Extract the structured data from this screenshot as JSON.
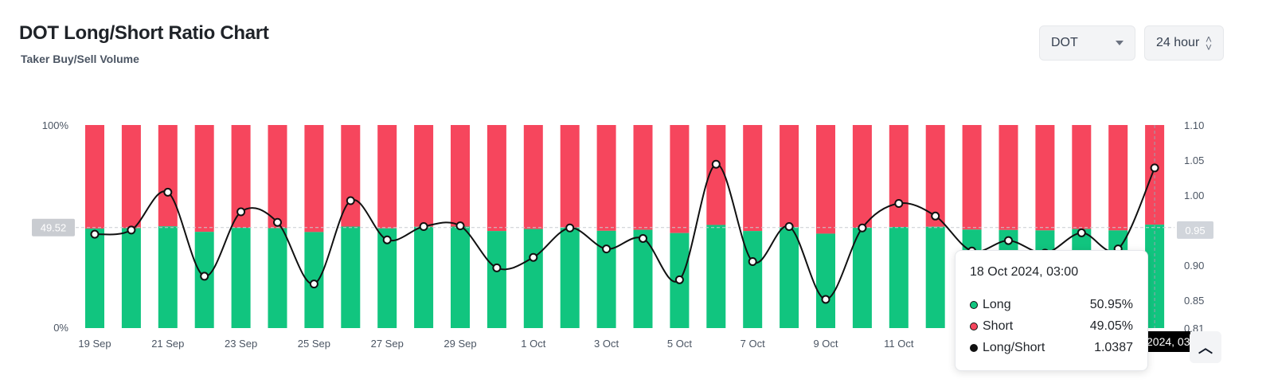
{
  "header": {
    "title": "DOT Long/Short Ratio Chart",
    "subtitle": "Taker Buy/Sell Volume",
    "coin_select": "DOT",
    "interval_select": "24 hour"
  },
  "colors": {
    "long": "#11c57f",
    "short": "#f6465d",
    "line": "#111111"
  },
  "chart_data": {
    "type": "bar",
    "title": "DOT Long/Short Ratio Chart",
    "subtitle": "Taker Buy/Sell Volume",
    "x_tick_labels": [
      "19 Sep",
      "21 Sep",
      "23 Sep",
      "25 Sep",
      "27 Sep",
      "29 Sep",
      "1 Oct",
      "3 Oct",
      "5 Oct",
      "7 Oct",
      "9 Oct",
      "11 Oct"
    ],
    "left_axis": {
      "ticks": [
        "100%",
        "0%"
      ],
      "range": [
        0,
        100
      ]
    },
    "right_axis": {
      "ticks": [
        "1.10",
        "1.05",
        "1.00",
        "0.95",
        "0.90",
        "0.85",
        "0.81"
      ],
      "range": [
        0.81,
        1.1
      ]
    },
    "reference_label": "49.52",
    "reference_value": 49.52,
    "series": [
      {
        "name": "Long",
        "type": "stacked-bar",
        "values": [
          49.0,
          49.2,
          50.1,
          47.4,
          49.4,
          49.2,
          47.3,
          50.0,
          49.1,
          49.9,
          50.0,
          47.8,
          48.8,
          49.5,
          47.9,
          48.4,
          46.8,
          50.8,
          47.8,
          49.7,
          46.5,
          49.4,
          49.8,
          49.9,
          48.5,
          48.3,
          48.1,
          48.8,
          48.1,
          50.95
        ]
      },
      {
        "name": "Short",
        "type": "stacked-bar",
        "values": [
          51.0,
          50.8,
          49.9,
          52.6,
          50.6,
          50.8,
          52.7,
          50.0,
          50.9,
          50.1,
          50.0,
          52.2,
          51.2,
          50.5,
          52.1,
          51.6,
          53.2,
          49.2,
          52.2,
          50.3,
          53.5,
          50.6,
          50.2,
          50.1,
          51.5,
          51.7,
          51.9,
          51.2,
          51.9,
          49.05
        ]
      },
      {
        "name": "Long/Short",
        "type": "line",
        "values": [
          0.944,
          0.95,
          1.004,
          0.884,
          0.976,
          0.961,
          0.873,
          0.992,
          0.936,
          0.955,
          0.956,
          0.896,
          0.911,
          0.953,
          0.923,
          0.938,
          0.879,
          1.044,
          0.905,
          0.955,
          0.851,
          0.953,
          0.988,
          0.97,
          0.92,
          0.935,
          0.917,
          0.946,
          0.923,
          1.0387
        ]
      }
    ],
    "tooltip": {
      "time": "18 Oct 2024, 03:00",
      "rows": [
        {
          "label": "Long",
          "value": "50.95%",
          "color": "#11c57f"
        },
        {
          "label": "Short",
          "value": "49.05%",
          "color": "#f6465d"
        },
        {
          "label": "Long/Short",
          "value": "1.0387",
          "color": "#111111"
        }
      ]
    },
    "crosshair_time": "2024, 03"
  }
}
